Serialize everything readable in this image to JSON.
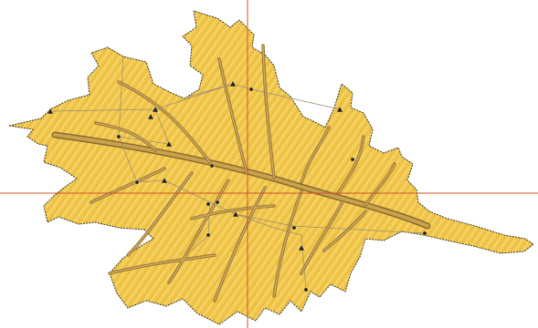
{
  "colors": {
    "background": "#ffffff",
    "leaf_fill": "#f1c84c",
    "leaf_fill_light": "#f7dc86",
    "leaf_outline": "#3a3320",
    "stitch_lines": "#e6b436",
    "vein_fill": "#c49a45",
    "vein_dark": "#8a6a30",
    "guide_crosshair": "#d0532a",
    "path_line": "#9a8a70",
    "node_marker": "#222222"
  },
  "icons": {
    "node_triangle": "triangle-node-icon",
    "node_circle": "circle-node-icon"
  }
}
